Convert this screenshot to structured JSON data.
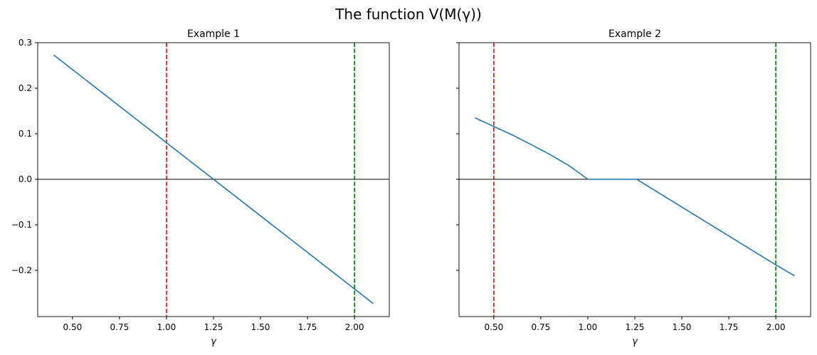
{
  "suptitle": "The function V(M(γ))",
  "chart_data": [
    {
      "type": "line",
      "title": "Example 1",
      "xlabel": "γ",
      "ylabel": "",
      "xlim": [
        0.315,
        2.185
      ],
      "ylim": [
        -0.3016,
        0.3
      ],
      "xticks": [
        0.5,
        0.75,
        1.0,
        1.25,
        1.5,
        1.75,
        2.0
      ],
      "xtick_labels": [
        "0.50",
        "0.75",
        "1.00",
        "1.25",
        "1.50",
        "1.75",
        "2.00"
      ],
      "yticks": [
        0.3,
        0.2,
        0.1,
        0.0,
        -0.1,
        -0.2
      ],
      "ytick_labels": [
        "0.3",
        "0.2",
        "0.1",
        "0.0",
        "−0.1",
        "−0.2"
      ],
      "show_ytick_labels": true,
      "series": [
        {
          "color": "#1f77b4",
          "x": [
            0.4,
            2.1
          ],
          "y": [
            0.273,
            -0.273
          ]
        }
      ],
      "hlines": [
        {
          "y": 0,
          "color": "#000000",
          "style": "solid"
        }
      ],
      "vlines": [
        {
          "x": 1.0,
          "color": "#ff0000",
          "style": "dashed"
        },
        {
          "x": 2.0,
          "color": "#008000",
          "style": "dashed"
        }
      ],
      "grid": false
    },
    {
      "type": "line",
      "title": "Example 2",
      "xlabel": "γ",
      "ylabel": "",
      "xlim": [
        0.315,
        2.185
      ],
      "ylim": [
        -0.3016,
        0.3
      ],
      "xticks": [
        0.5,
        0.75,
        1.0,
        1.25,
        1.5,
        1.75,
        2.0
      ],
      "xtick_labels": [
        "0.50",
        "0.75",
        "1.00",
        "1.25",
        "1.50",
        "1.75",
        "2.00"
      ],
      "yticks": [
        0.3,
        0.2,
        0.1,
        0.0,
        -0.1,
        -0.2
      ],
      "ytick_labels": [
        "",
        "",
        "",
        "",
        "",
        ""
      ],
      "show_ytick_labels": false,
      "series": [
        {
          "color": "#1f77b4",
          "x": [
            0.4,
            0.5,
            0.6,
            0.7,
            0.8,
            0.9,
            0.95,
            1.0,
            1.26,
            2.0,
            2.1
          ],
          "y": [
            0.135,
            0.116,
            0.097,
            0.076,
            0.054,
            0.03,
            0.015,
            0.0,
            0.0,
            -0.188,
            -0.212
          ]
        }
      ],
      "hlines": [
        {
          "y": 0,
          "color": "#000000",
          "style": "solid"
        }
      ],
      "vlines": [
        {
          "x": 0.5,
          "color": "#ff0000",
          "style": "dashed"
        },
        {
          "x": 2.0,
          "color": "#008000",
          "style": "dashed"
        }
      ],
      "grid": false
    }
  ]
}
